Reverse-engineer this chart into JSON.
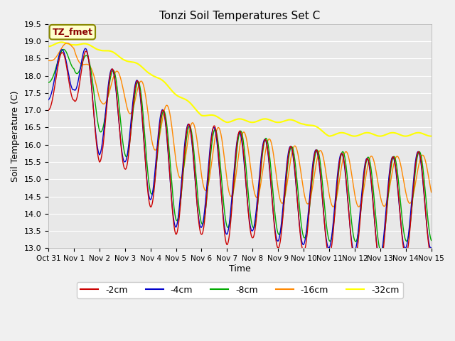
{
  "title": "Tonzi Soil Temperatures Set C",
  "ylabel": "Soil Temperature (C)",
  "xlabel": "Time",
  "ylim": [
    13.0,
    19.5
  ],
  "legend_label": "TZ_fmet",
  "series": {
    "-2cm": {
      "color": "#cc0000",
      "lw": 1.0
    },
    "-4cm": {
      "color": "#0000cc",
      "lw": 1.0
    },
    "-8cm": {
      "color": "#00aa00",
      "lw": 1.0
    },
    "-16cm": {
      "color": "#ff8800",
      "lw": 1.0
    },
    "-32cm": {
      "color": "#ffff00",
      "lw": 1.5
    }
  },
  "yticks": [
    13.0,
    13.5,
    14.0,
    14.5,
    15.0,
    15.5,
    16.0,
    16.5,
    17.0,
    17.5,
    18.0,
    18.5,
    19.0,
    19.5
  ],
  "xtick_labels": [
    "Oct 31",
    "Nov 1",
    "Nov 2",
    "Nov 3",
    "Nov 4",
    "Nov 5",
    "Nov 6",
    "Nov 7",
    "Nov 8",
    "Nov 9",
    "Nov 10",
    "Nov 11",
    "Nov 12",
    "Nov 13",
    "Nov 14",
    "Nov 15"
  ],
  "n_points": 2000
}
